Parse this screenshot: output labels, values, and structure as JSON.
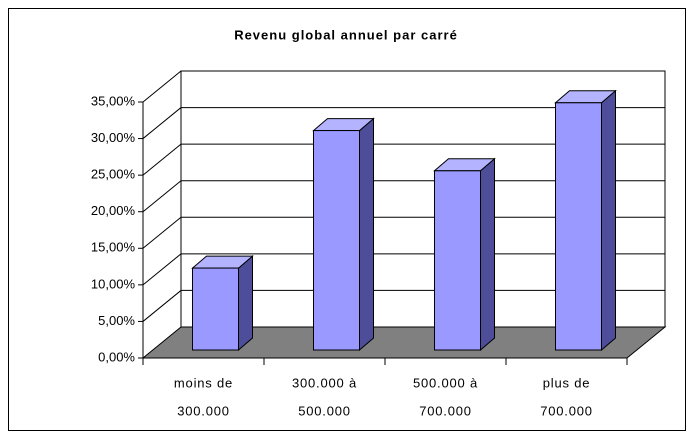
{
  "chart_data": {
    "type": "bar3d",
    "title": "Revenu global annuel par carré",
    "categories": [
      [
        "moins de",
        "300.000"
      ],
      [
        "300.000 à",
        "500.000"
      ],
      [
        "500.000 à",
        "700.000"
      ],
      [
        "plus de",
        "700.000"
      ]
    ],
    "values": [
      11.2,
      30,
      24.5,
      33.8
    ],
    "colors": {
      "front": "#9999ff",
      "side": "#4d4d99",
      "top": "#b3b3ff",
      "floor": "#808080"
    },
    "ylim": [
      0,
      35
    ],
    "yticks": [
      {
        "value": 0,
        "label": "0,00%"
      },
      {
        "value": 5,
        "label": "5,00%"
      },
      {
        "value": 10,
        "label": "10,00%"
      },
      {
        "value": 15,
        "label": "15,00%"
      },
      {
        "value": 20,
        "label": "20,00%"
      },
      {
        "value": 25,
        "label": "25,00%"
      },
      {
        "value": 30,
        "label": "30,00%"
      },
      {
        "value": 35,
        "label": "35,00%"
      }
    ],
    "grid": true
  }
}
